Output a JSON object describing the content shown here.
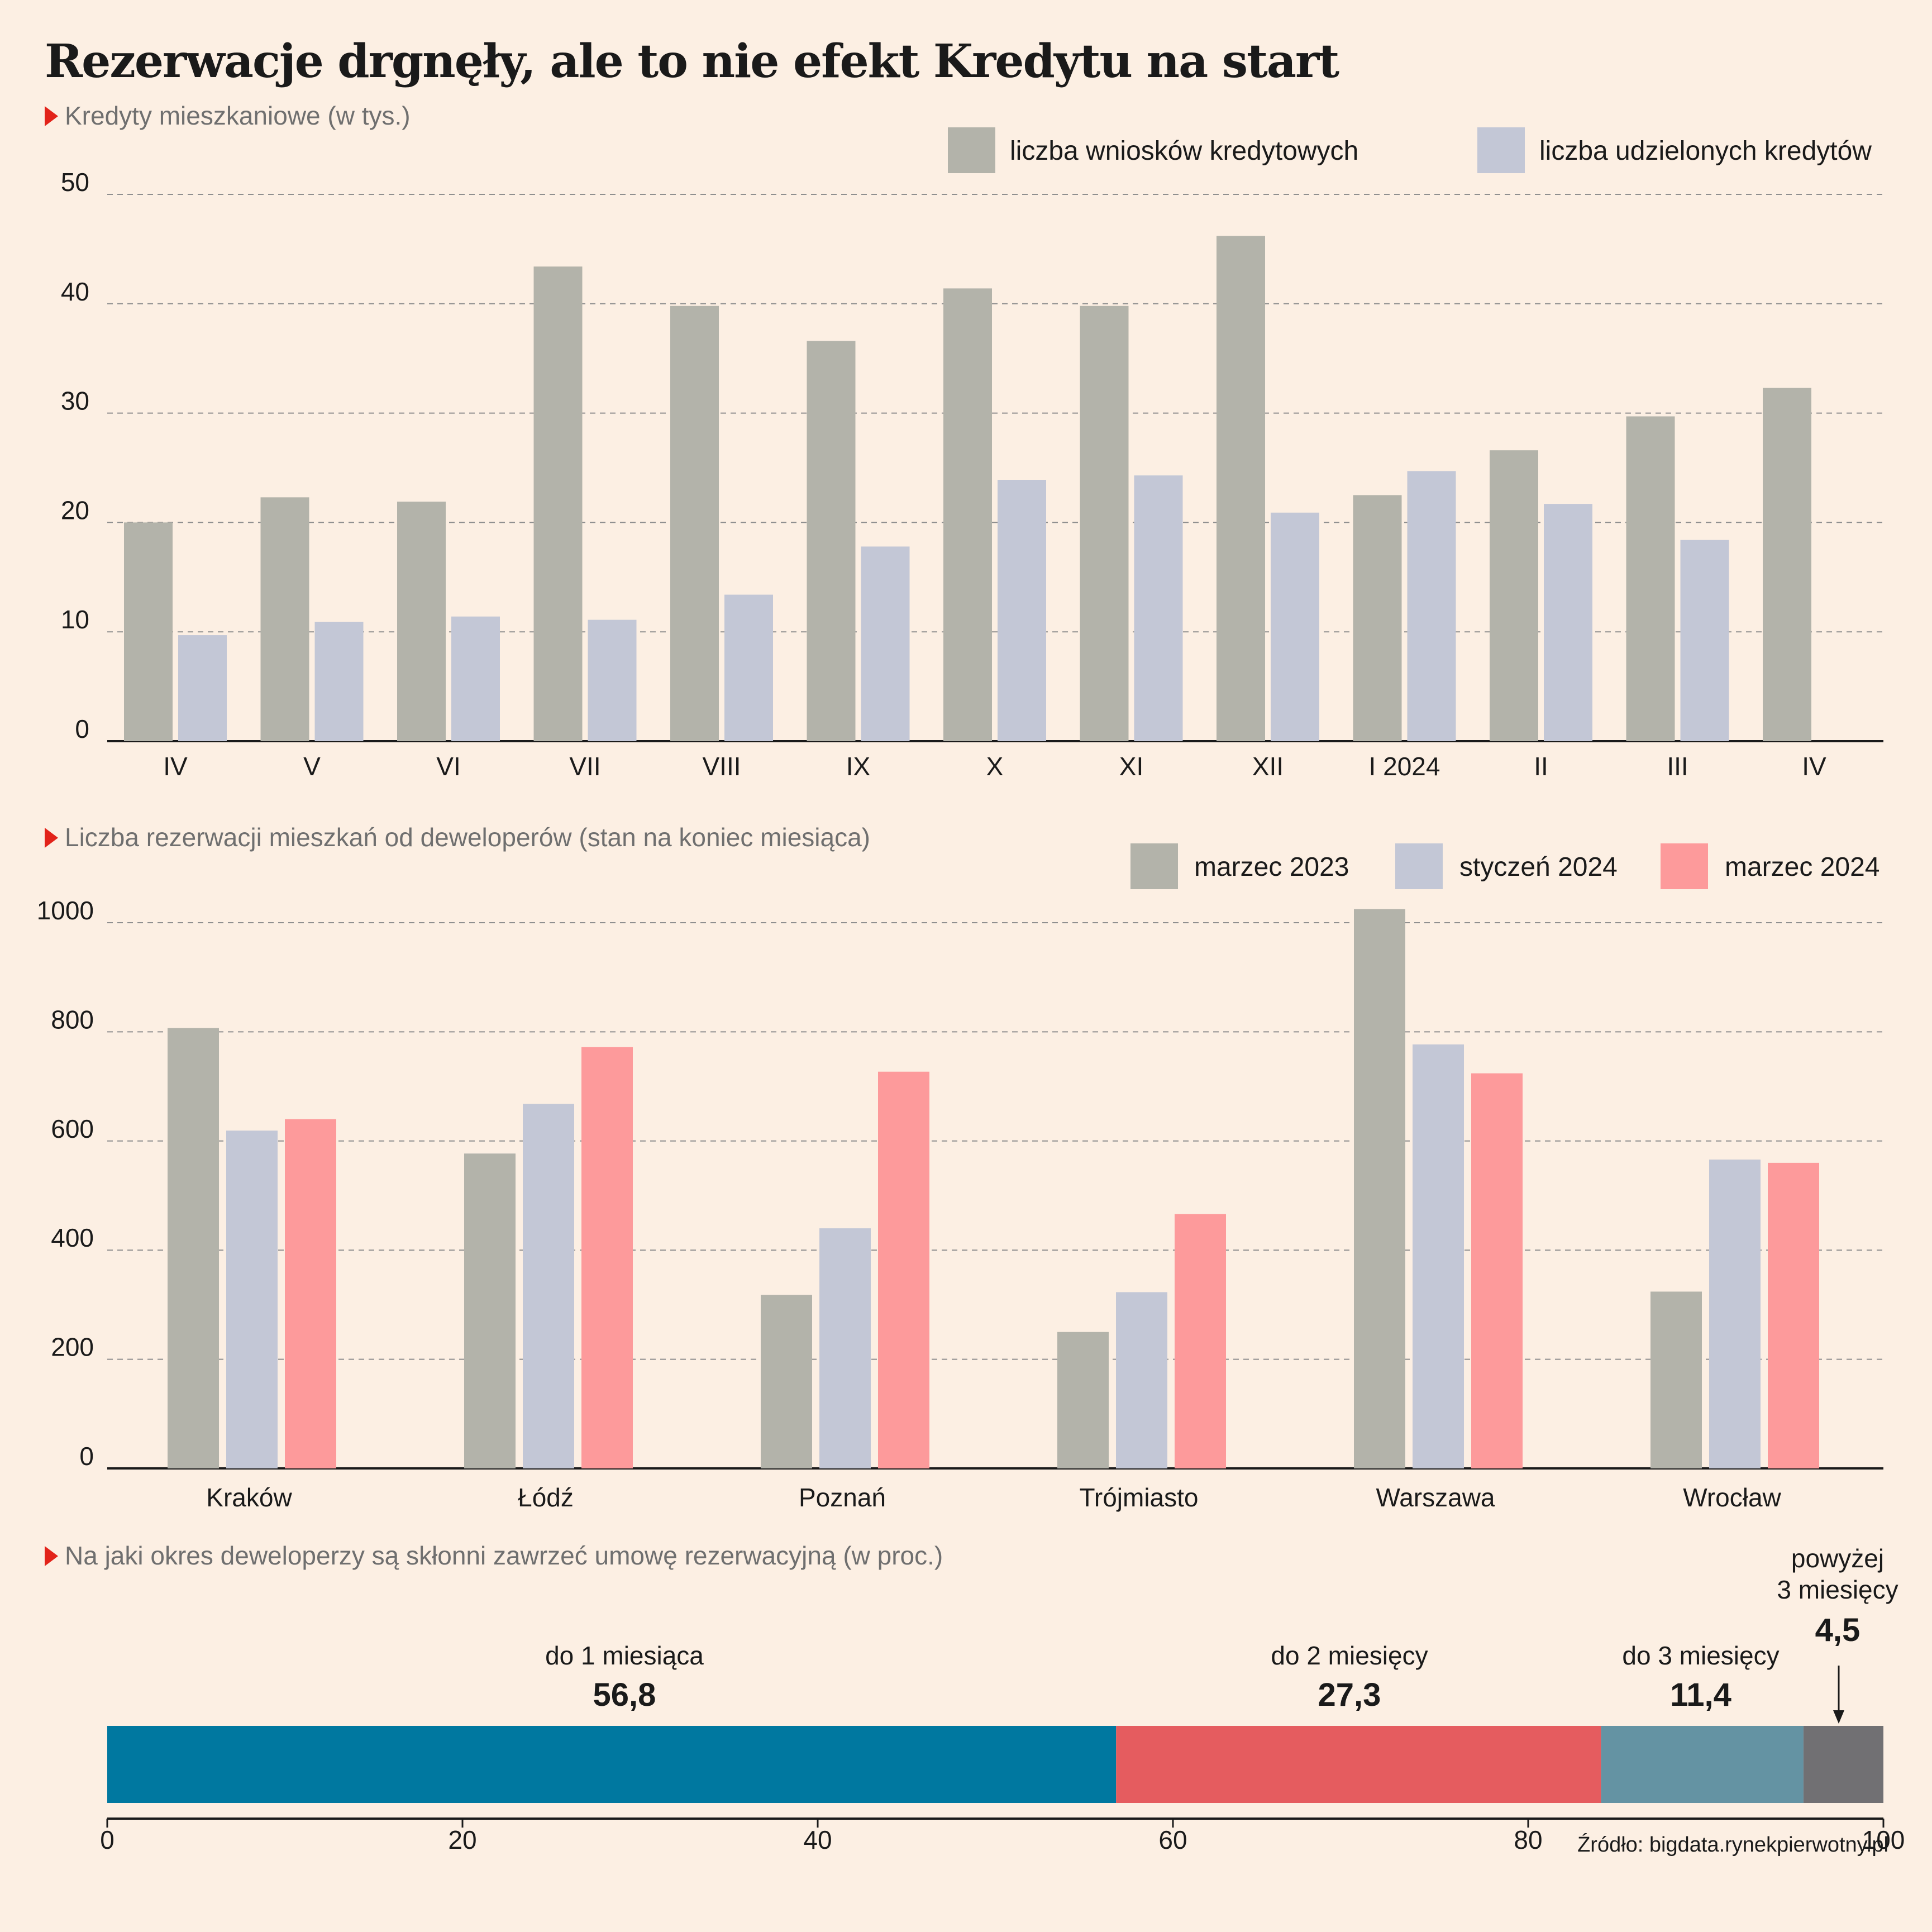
{
  "title": "Rezerwacje drgnęły, ale to nie efekt Kredytu na start",
  "source": "Źródło: bigdata.rynekpierwotny.pl",
  "colors": {
    "background": "#fcefe3",
    "gray": "#b3b3aa",
    "lavender": "#c3c7d6",
    "pink": "#fd9a9b",
    "accent_red": "#e2231a",
    "teal": "#0078a0",
    "coral": "#e55c5f",
    "slate": "#6493a3",
    "dark_gray": "#717073"
  },
  "chart_data": [
    {
      "type": "bar",
      "title": "Kredyty mieszkaniowe (w tys.)",
      "categories": [
        "IV",
        "V",
        "VI",
        "VII",
        "VIII",
        "IX",
        "X",
        "XI",
        "XII",
        "I 2024",
        "II",
        "III",
        "IV"
      ],
      "series": [
        {
          "name": "liczba wniosków kredytowych",
          "values": [
            20.0,
            22.3,
            21.9,
            43.4,
            39.8,
            36.6,
            41.4,
            39.8,
            46.2,
            22.5,
            26.6,
            29.7,
            32.3
          ]
        },
        {
          "name": "liczba udzielonych kredytów",
          "values": [
            9.7,
            10.9,
            11.4,
            11.1,
            13.4,
            17.8,
            23.9,
            24.3,
            20.9,
            24.7,
            21.7,
            18.4,
            null
          ]
        }
      ],
      "ylim": [
        0,
        50
      ],
      "yticks": [
        0,
        10,
        20,
        30,
        40,
        50
      ],
      "grid": true,
      "legend": "top-right"
    },
    {
      "type": "bar",
      "title": "Liczba rezerwacji mieszkań od deweloperów (stan na koniec miesiąca)",
      "categories": [
        "Kraków",
        "Łódź",
        "Poznań",
        "Trójmiasto",
        "Warszawa",
        "Wrocław"
      ],
      "series": [
        {
          "name": "marzec 2023",
          "values": [
            807,
            577,
            318,
            250,
            1025,
            324
          ]
        },
        {
          "name": "styczeń 2024",
          "values": [
            619,
            668,
            440,
            323,
            777,
            566
          ]
        },
        {
          "name": "marzec 2024",
          "values": [
            640,
            772,
            727,
            466,
            724,
            560
          ]
        }
      ],
      "ylim": [
        0,
        1000
      ],
      "yticks": [
        0,
        200,
        400,
        600,
        800,
        1000
      ],
      "grid": true,
      "legend": "top-right"
    },
    {
      "type": "bar",
      "title": "Na jaki okres deweloperzy są skłonni zawrzeć umowę rezerwacyjną (w proc.)",
      "stacked": true,
      "segments": [
        {
          "label": "do 1 miesiąca",
          "value": 56.8,
          "value_label": "56,8"
        },
        {
          "label": "do 2 miesięcy",
          "value": 27.3,
          "value_label": "27,3"
        },
        {
          "label": "do 3 miesięcy",
          "value": 11.4,
          "value_label": "11,4"
        },
        {
          "label_line1": "powyżej",
          "label_line2": "3 miesięcy",
          "value": 4.5,
          "value_label": "4,5"
        }
      ],
      "xlim": [
        0,
        100
      ],
      "xticks": [
        0,
        20,
        40,
        60,
        80,
        100
      ]
    }
  ]
}
